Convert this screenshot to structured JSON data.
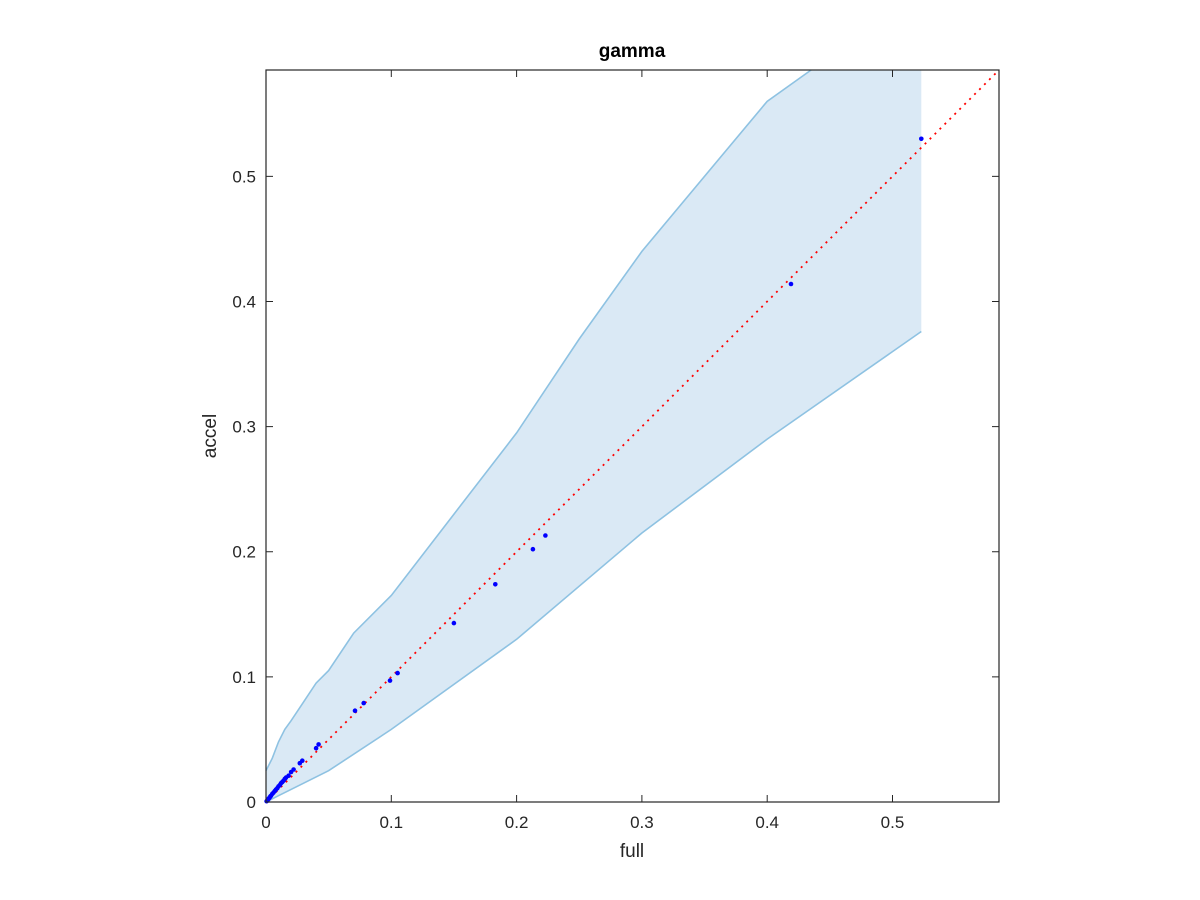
{
  "chart_data": {
    "type": "scatter",
    "title": "gamma",
    "xlabel": "full",
    "ylabel": "accel",
    "xlim": [
      0,
      0.585
    ],
    "ylim": [
      0,
      0.585
    ],
    "xticks": [
      0,
      0.1,
      0.2,
      0.3,
      0.4,
      0.5
    ],
    "xtick_labels": [
      "0",
      "0.1",
      "0.2",
      "0.3",
      "0.4",
      "0.5"
    ],
    "yticks": [
      0,
      0.1,
      0.2,
      0.3,
      0.4,
      0.5
    ],
    "ytick_labels": [
      "0",
      "0.1",
      "0.2",
      "0.3",
      "0.4",
      "0.5"
    ],
    "grid": false,
    "colors": {
      "band_fill": "#dae9f5",
      "band_edge": "#8ec2e2",
      "points": "#0000ff",
      "reference_line": "#ff0000",
      "axes": "#262626"
    },
    "band": {
      "upper": [
        [
          0,
          0.025
        ],
        [
          0.005,
          0.035
        ],
        [
          0.01,
          0.048
        ],
        [
          0.015,
          0.058
        ],
        [
          0.02,
          0.065
        ],
        [
          0.03,
          0.08
        ],
        [
          0.04,
          0.095
        ],
        [
          0.05,
          0.105
        ],
        [
          0.07,
          0.135
        ],
        [
          0.1,
          0.165
        ],
        [
          0.15,
          0.23
        ],
        [
          0.2,
          0.295
        ],
        [
          0.25,
          0.37
        ],
        [
          0.3,
          0.44
        ],
        [
          0.35,
          0.5
        ],
        [
          0.4,
          0.56
        ],
        [
          0.435,
          0.585
        ],
        [
          0.523,
          0.585
        ]
      ],
      "lower": [
        [
          0,
          0
        ],
        [
          0.01,
          0.005
        ],
        [
          0.03,
          0.015
        ],
        [
          0.05,
          0.025
        ],
        [
          0.1,
          0.058
        ],
        [
          0.2,
          0.13
        ],
        [
          0.3,
          0.215
        ],
        [
          0.4,
          0.29
        ],
        [
          0.523,
          0.376
        ]
      ]
    },
    "reference_line": {
      "style": "dotted",
      "x": [
        0,
        0.585
      ],
      "y": [
        0,
        0.585
      ]
    },
    "series": [
      {
        "x": [
          0.0005,
          0.001,
          0.0015,
          0.002,
          0.0025,
          0.003,
          0.0035,
          0.004,
          0.005,
          0.006,
          0.007,
          0.008,
          0.009,
          0.01,
          0.011,
          0.012,
          0.013,
          0.014,
          0.015,
          0.016,
          0.018,
          0.02,
          0.022,
          0.027,
          0.029,
          0.04,
          0.042,
          0.071,
          0.078,
          0.099,
          0.105,
          0.15,
          0.183,
          0.213,
          0.223,
          0.419,
          0.523
        ],
        "y": [
          0.0006,
          0.0012,
          0.0018,
          0.0025,
          0.003,
          0.0038,
          0.0045,
          0.005,
          0.0065,
          0.0075,
          0.0088,
          0.01,
          0.011,
          0.0125,
          0.0135,
          0.015,
          0.016,
          0.017,
          0.0185,
          0.0195,
          0.021,
          0.024,
          0.026,
          0.031,
          0.033,
          0.043,
          0.046,
          0.073,
          0.079,
          0.097,
          0.103,
          0.143,
          0.174,
          0.202,
          0.213,
          0.414,
          0.53
        ]
      }
    ]
  }
}
